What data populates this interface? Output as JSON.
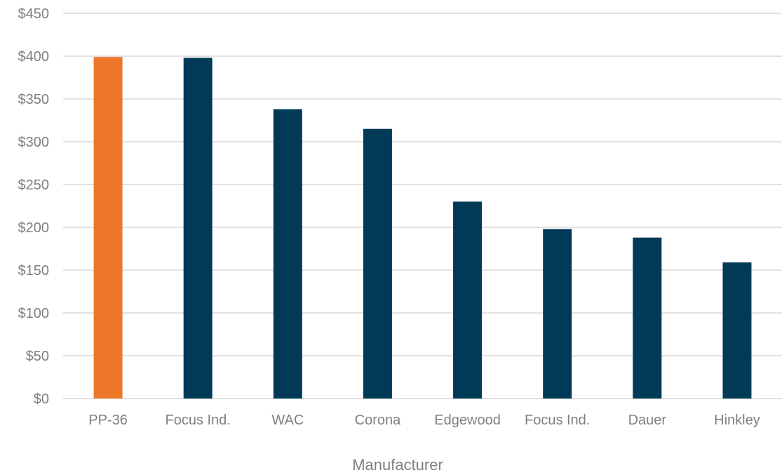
{
  "chart_data": {
    "type": "bar",
    "title": "",
    "xlabel": "Manufacturer",
    "ylabel": "",
    "categories": [
      "PP-36",
      "Focus Ind.",
      "WAC",
      "Corona",
      "Edgewood",
      "Focus Ind.",
      "Dauer",
      "Hinkley"
    ],
    "values": [
      399,
      398,
      338,
      315,
      230,
      198,
      188,
      159
    ],
    "bar_colors": [
      "#ED7629",
      "#003A57",
      "#003A57",
      "#003A57",
      "#003A57",
      "#003A57",
      "#003A57",
      "#003A57"
    ],
    "ylim": [
      0,
      450
    ],
    "yticks": [
      0,
      50,
      100,
      150,
      200,
      250,
      300,
      350,
      400,
      450
    ],
    "ytick_labels": [
      "$0",
      "$50",
      "$100",
      "$150",
      "$200",
      "$250",
      "$300",
      "$350",
      "$400",
      "$450"
    ],
    "grid": true,
    "gridline_color": "#d9d9d9",
    "legend": "none"
  }
}
